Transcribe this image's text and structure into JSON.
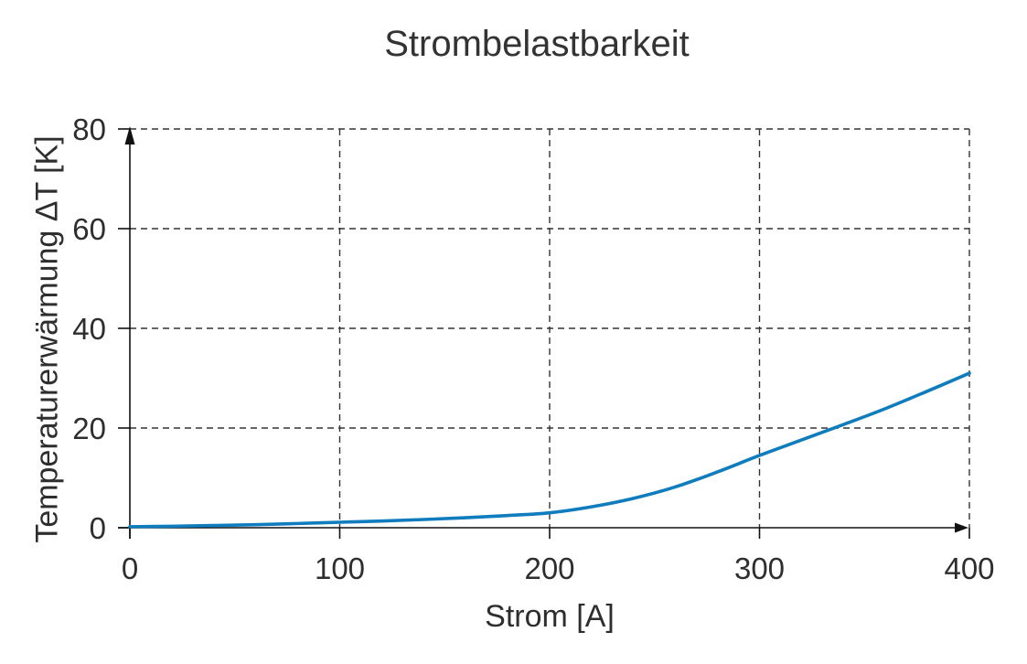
{
  "chart_data": {
    "type": "line",
    "title": "Strombelastbarkeit",
    "xlabel": "Strom [A]",
    "ylabel": "Temperaturerwärmung ΔT [K]",
    "xlim": [
      0,
      400
    ],
    "ylim": [
      0,
      80
    ],
    "xticks": [
      0,
      100,
      200,
      300,
      400
    ],
    "yticks": [
      0,
      20,
      40,
      60,
      80
    ],
    "grid": "dashed",
    "legend": "none",
    "colors": {
      "line": "#0f7cbd",
      "axis": "#111111",
      "grid": "#333333",
      "text": "#2e2e2e"
    },
    "series": [
      {
        "name": "Temperaturerwärmung",
        "x": [
          0,
          20,
          40,
          60,
          80,
          100,
          120,
          140,
          160,
          180,
          200,
          220,
          240,
          260,
          280,
          300,
          320,
          340,
          360,
          380,
          400
        ],
        "y": [
          0.2,
          0.3,
          0.45,
          0.6,
          0.85,
          1.1,
          1.35,
          1.65,
          2.0,
          2.45,
          3.0,
          4.2,
          5.9,
          8.2,
          11.2,
          14.5,
          17.6,
          20.7,
          23.9,
          27.4,
          31.0
        ]
      }
    ]
  }
}
